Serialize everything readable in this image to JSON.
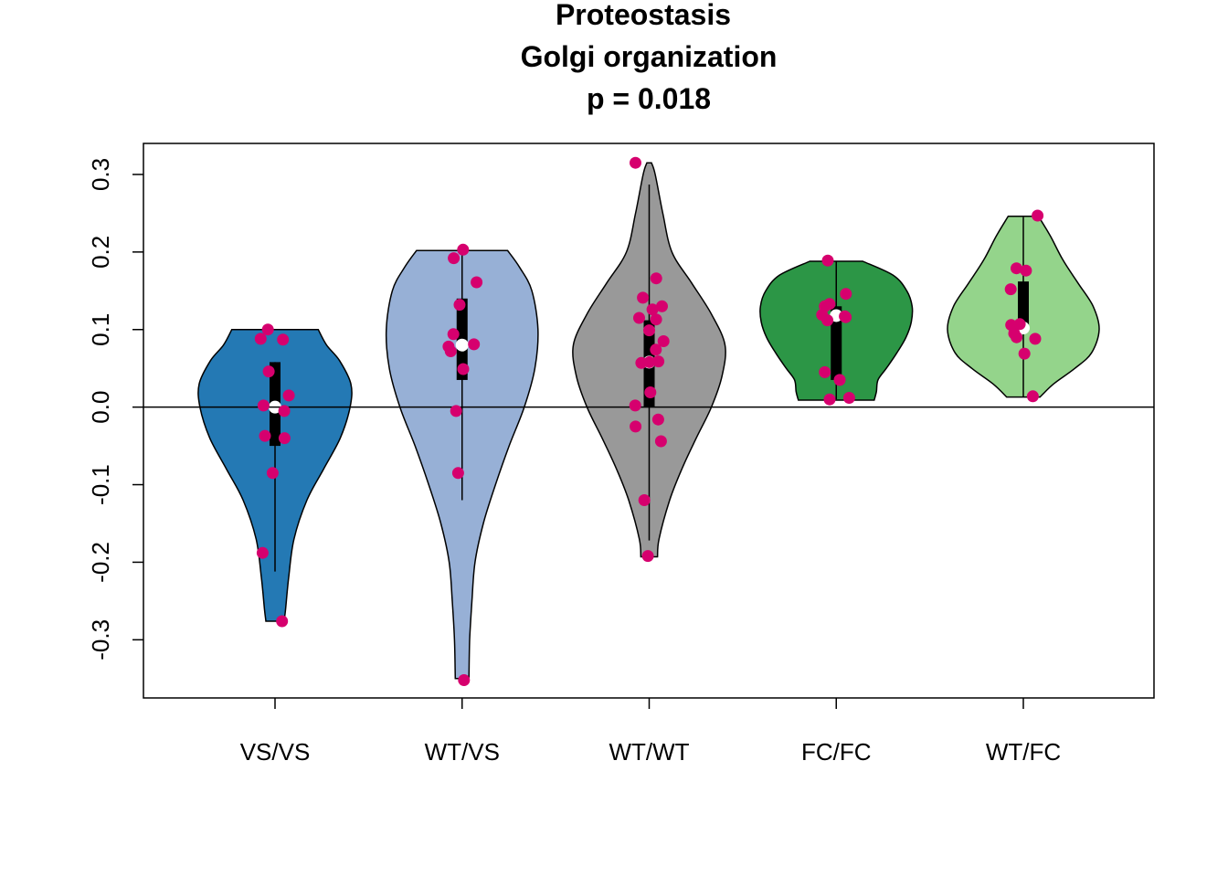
{
  "chart_data": {
    "type": "violin",
    "title": [
      "Proteostasis",
      "Golgi organization",
      "p = 0.018"
    ],
    "xlabel": "",
    "ylabel": "",
    "ylim": [
      -0.375,
      0.34
    ],
    "yticks": [
      -0.3,
      -0.2,
      -0.1,
      0.0,
      0.1,
      0.2,
      0.3
    ],
    "ytick_labels": [
      "-0.3",
      "-0.2",
      "-0.1",
      "0.0",
      "0.1",
      "0.2",
      "0.3"
    ],
    "reference_line_y": 0.0,
    "point_color": "#d6006e",
    "categories": [
      "VS/VS",
      "WT/VS",
      "WT/WT",
      "FC/FC",
      "WT/FC"
    ],
    "groups": [
      {
        "category": "VS/VS",
        "color": "#2479b4",
        "whisker": [
          -0.212,
          0.058
        ],
        "box": [
          -0.05,
          0.058
        ],
        "median": 0.0,
        "density": [
          [
            -0.276,
            0.12
          ],
          [
            -0.26,
            0.14
          ],
          [
            -0.22,
            0.18
          ],
          [
            -0.17,
            0.25
          ],
          [
            -0.12,
            0.42
          ],
          [
            -0.08,
            0.64
          ],
          [
            -0.04,
            0.86
          ],
          [
            0.0,
            0.99
          ],
          [
            0.03,
            1.0
          ],
          [
            0.06,
            0.85
          ],
          [
            0.08,
            0.68
          ],
          [
            0.1,
            0.57
          ]
        ],
        "points": [
          -0.276,
          -0.188,
          -0.085,
          -0.04,
          -0.037,
          -0.005,
          0.002,
          0.015,
          0.046,
          0.087,
          0.088,
          0.1
        ]
      },
      {
        "category": "WT/VS",
        "color": "#97b0d6",
        "whisker": [
          -0.12,
          0.202
        ],
        "box": [
          0.035,
          0.14
        ],
        "median": 0.08,
        "density": [
          [
            -0.35,
            0.09
          ],
          [
            -0.3,
            0.1
          ],
          [
            -0.25,
            0.13
          ],
          [
            -0.2,
            0.17
          ],
          [
            -0.15,
            0.28
          ],
          [
            -0.1,
            0.44
          ],
          [
            -0.05,
            0.62
          ],
          [
            0.0,
            0.82
          ],
          [
            0.05,
            0.96
          ],
          [
            0.1,
            1.0
          ],
          [
            0.15,
            0.92
          ],
          [
            0.18,
            0.76
          ],
          [
            0.202,
            0.6
          ]
        ],
        "points": [
          -0.352,
          -0.085,
          -0.005,
          0.049,
          0.072,
          0.078,
          0.081,
          0.094,
          0.132,
          0.161,
          0.192,
          0.203
        ]
      },
      {
        "category": "WT/WT",
        "color": "#999999",
        "whisker": [
          -0.172,
          0.287
        ],
        "box": [
          0.0,
          0.112
        ],
        "median": 0.058,
        "density": [
          [
            -0.193,
            0.11
          ],
          [
            -0.17,
            0.13
          ],
          [
            -0.12,
            0.27
          ],
          [
            -0.08,
            0.43
          ],
          [
            -0.04,
            0.62
          ],
          [
            0.0,
            0.82
          ],
          [
            0.04,
            0.96
          ],
          [
            0.08,
            1.0
          ],
          [
            0.12,
            0.82
          ],
          [
            0.16,
            0.56
          ],
          [
            0.2,
            0.3
          ],
          [
            0.25,
            0.18
          ],
          [
            0.3,
            0.08
          ],
          [
            0.315,
            0.03
          ]
        ],
        "points": [
          -0.192,
          -0.12,
          -0.044,
          -0.025,
          -0.016,
          0.002,
          0.019,
          0.057,
          0.058,
          0.059,
          0.074,
          0.085,
          0.099,
          0.113,
          0.115,
          0.126,
          0.13,
          0.141,
          0.166,
          0.315
        ]
      },
      {
        "category": "FC/FC",
        "color": "#2c9646",
        "whisker": [
          0.01,
          0.188
        ],
        "box": [
          0.035,
          0.13
        ],
        "median": 0.118,
        "density": [
          [
            0.009,
            0.5
          ],
          [
            0.02,
            0.53
          ],
          [
            0.035,
            0.55
          ],
          [
            0.05,
            0.66
          ],
          [
            0.07,
            0.8
          ],
          [
            0.09,
            0.92
          ],
          [
            0.11,
            0.99
          ],
          [
            0.13,
            1.0
          ],
          [
            0.15,
            0.93
          ],
          [
            0.17,
            0.75
          ],
          [
            0.188,
            0.35
          ]
        ],
        "points": [
          0.01,
          0.012,
          0.035,
          0.045,
          0.112,
          0.116,
          0.117,
          0.119,
          0.13,
          0.133,
          0.146,
          0.189
        ]
      },
      {
        "category": "WT/FC",
        "color": "#94d48b",
        "whisker": [
          0.013,
          0.245
        ],
        "box": [
          0.1,
          0.162
        ],
        "median": 0.102,
        "density": [
          [
            0.013,
            0.22
          ],
          [
            0.03,
            0.4
          ],
          [
            0.05,
            0.68
          ],
          [
            0.07,
            0.9
          ],
          [
            0.1,
            1.0
          ],
          [
            0.13,
            0.92
          ],
          [
            0.16,
            0.72
          ],
          [
            0.19,
            0.52
          ],
          [
            0.22,
            0.36
          ],
          [
            0.246,
            0.2
          ]
        ],
        "points": [
          0.014,
          0.069,
          0.088,
          0.09,
          0.095,
          0.106,
          0.107,
          0.152,
          0.176,
          0.179,
          0.247
        ]
      }
    ]
  }
}
